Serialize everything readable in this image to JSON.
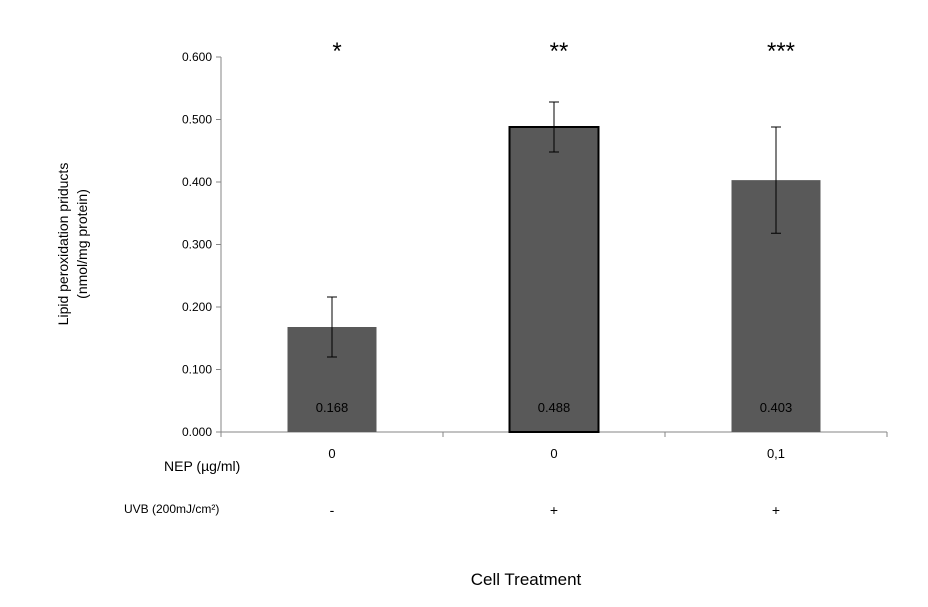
{
  "chart_data": {
    "type": "bar",
    "title": "",
    "ylabel_line1": "Lipid peroxidation priducts",
    "ylabel_line2": "(nmol/mg protein)",
    "xlabel": "Cell Treatment",
    "ylim": [
      0,
      0.6
    ],
    "yticks": [
      "0.000",
      "0.100",
      "0.200",
      "0.300",
      "0.400",
      "0.500",
      "0.600"
    ],
    "categories": [
      "0",
      "0",
      "0,1"
    ],
    "values": [
      0.168,
      0.488,
      0.403
    ],
    "value_labels": [
      "0.168",
      "0.488",
      "0.403"
    ],
    "errors": [
      0.048,
      0.04,
      0.085
    ],
    "significance": [
      "*",
      "**",
      "***"
    ],
    "rows": [
      {
        "label": "NEP (µg/ml)",
        "values": [
          "0",
          "0",
          "0,1"
        ]
      },
      {
        "label": "UVB (200mJ/cm²)",
        "values": [
          "-",
          "+",
          "+"
        ]
      }
    ],
    "bar_color": "#595959",
    "highlighted_bar": 1
  }
}
